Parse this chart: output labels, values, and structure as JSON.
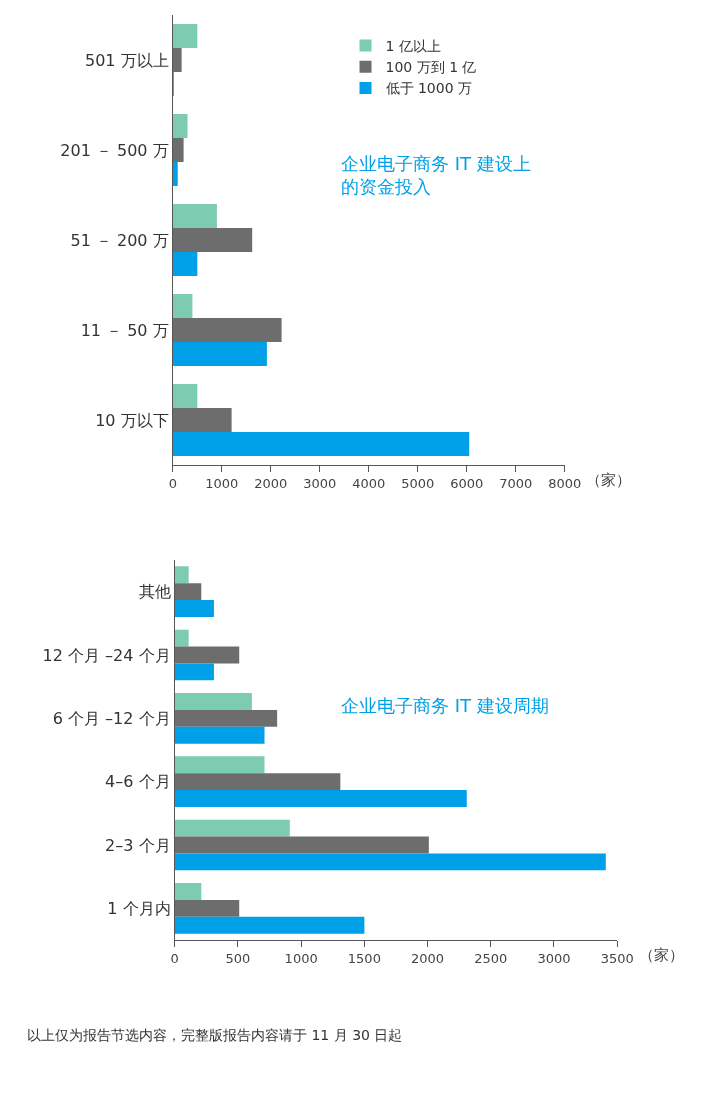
{
  "chart_data": [
    {
      "type": "bar",
      "orientation": "horizontal",
      "title": "企业电子商务 IT 建设上的资金投入",
      "xlabel": "（家）",
      "categories": [
        "501 万以上",
        "201 － 500 万",
        "51 － 200 万",
        "11 － 50 万",
        "10 万以下"
      ],
      "series": [
        {
          "name": "1 亿以上",
          "color": "#7dcbb0",
          "values": [
            500,
            300,
            900,
            400,
            500
          ]
        },
        {
          "name": "100 万到 1 亿",
          "color": "#6d6d6d",
          "values": [
            180,
            220,
            1620,
            2220,
            1200
          ]
        },
        {
          "name": "低于 1000 万",
          "color": "#00a0e9",
          "values": [
            20,
            100,
            500,
            1920,
            6050
          ]
        }
      ],
      "xlim": [
        0,
        8000
      ],
      "xticks": [
        0,
        1000,
        2000,
        3000,
        4000,
        5000,
        6000,
        7000,
        8000
      ],
      "legend": "top right"
    },
    {
      "type": "bar",
      "orientation": "horizontal",
      "title": "企业电子商务 IT 建设周期",
      "xlabel": "（家）",
      "categories": [
        "其他",
        "12 个月 –24 个月",
        "6 个月 –12 个月",
        "4–6 个月",
        "2–3 个月",
        "1 个月内"
      ],
      "series": [
        {
          "color": "#7dcbb0",
          "values": [
            110,
            110,
            610,
            710,
            910,
            210
          ]
        },
        {
          "color": "#6d6d6d",
          "values": [
            210,
            510,
            810,
            1310,
            2010,
            510
          ]
        },
        {
          "color": "#00a0e9",
          "values": [
            310,
            310,
            710,
            2310,
            3410,
            1500
          ]
        }
      ],
      "xlim": [
        0,
        3500
      ],
      "xticks": [
        0,
        500,
        1000,
        1500,
        2000,
        2500,
        3000,
        3500
      ],
      "legend": false,
      "annotations": [
        "以上仅为报告节选内容，完整版报告内容请于 11 月 30 日起"
      ]
    }
  ]
}
